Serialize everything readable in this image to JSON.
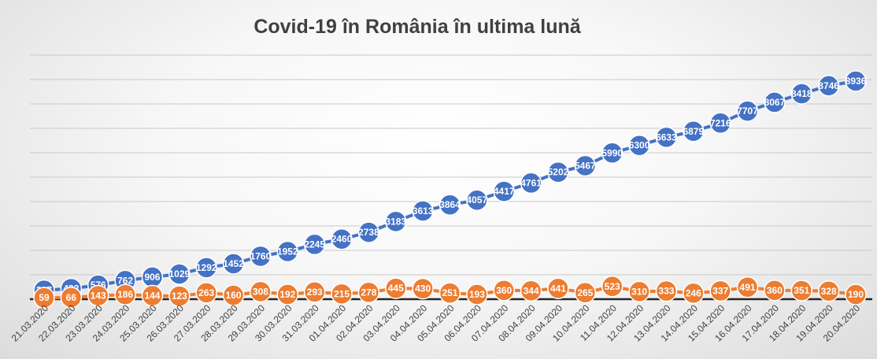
{
  "chart_data": {
    "type": "line",
    "title": "Covid-19 în România în ultima lună",
    "xlabel": "",
    "ylabel": "",
    "categories": [
      "21.03.2020",
      "22.03.2020",
      "23.03.2020",
      "24.03.2020",
      "25.03.2020",
      "26.03.2020",
      "27.03.2020",
      "28.03.2020",
      "29.03.2020",
      "30.03.2020",
      "31.03.2020",
      "01.04.2020",
      "02.04.2020",
      "03.04.2020",
      "04.04.2020",
      "05.04.2020",
      "06.04.2020",
      "07.04.2020",
      "08.04.2020",
      "09.04.2020",
      "10.04.2020",
      "11.04.2020",
      "12.04.2020",
      "13.04.2020",
      "14.04.2020",
      "15.04.2020",
      "16.04.2020",
      "17.04.2020",
      "18.04.2020",
      "19.04.2020",
      "20.04.2020"
    ],
    "series": [
      {
        "color": "#4472c4",
        "values": [
          367,
          433,
          576,
          762,
          906,
          1029,
          1292,
          1452,
          1760,
          1952,
          2245,
          2460,
          2738,
          3183,
          3613,
          3864,
          4057,
          4417,
          4761,
          5202,
          5467,
          5990,
          6300,
          6633,
          6879,
          7216,
          7707,
          8067,
          8418,
          8746,
          8936
        ]
      },
      {
        "color": "#ed7d31",
        "values": [
          59,
          66,
          143,
          186,
          144,
          123,
          263,
          160,
          308,
          192,
          293,
          215,
          278,
          445,
          430,
          251,
          193,
          360,
          344,
          441,
          265,
          523,
          310,
          333,
          246,
          337,
          491,
          360,
          351,
          328,
          190
        ]
      }
    ],
    "ylim": [
      0,
      10000
    ],
    "grid": true,
    "legend": "none"
  }
}
